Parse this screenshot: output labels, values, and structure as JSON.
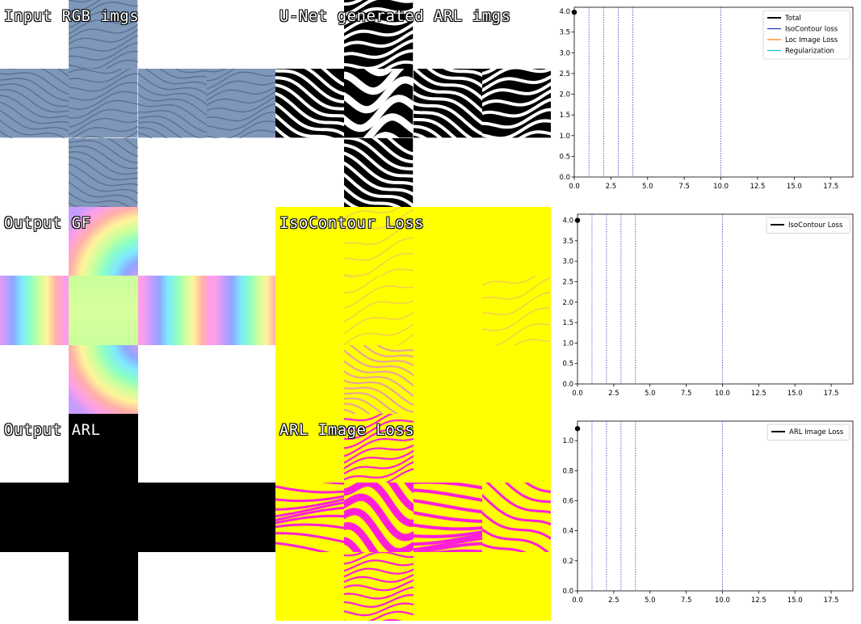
{
  "panels": [
    {
      "key": "input_rgb",
      "label": "Input RGB imgs",
      "row": 0,
      "col": 0,
      "style": "rgb"
    },
    {
      "key": "unet_arl",
      "label": "U-Net generated ARL imgs",
      "row": 0,
      "col": 1,
      "style": "bw"
    },
    {
      "key": "output_gf",
      "label": "Output GF",
      "row": 1,
      "col": 0,
      "style": "rainbow"
    },
    {
      "key": "isocontour_loss",
      "label": "IsoContour Loss",
      "row": 1,
      "col": 1,
      "style": "yellow_sparse"
    },
    {
      "key": "output_arl",
      "label": "Output ARL",
      "row": 2,
      "col": 0,
      "style": "black"
    },
    {
      "key": "arl_image_loss",
      "label": "ARL Image Loss",
      "row": 2,
      "col": 1,
      "style": "yellow_magenta"
    }
  ],
  "colors": {
    "rgb_base": "#7f97b8",
    "rgb_stripe": "#3e5472",
    "bw_base": "#000000",
    "bw_stripe": "#ffffff",
    "yellow": "#ffff00",
    "magenta": "#ff1fd6",
    "pink_sparse": "#e89aa8",
    "black": "#000000",
    "total": "#000000",
    "isocontour": "#1f3fbf",
    "loc_image": "#ff7f0e",
    "regularization": "#17becf",
    "vline": "#3b3bc8"
  },
  "chart_data": [
    {
      "type": "line",
      "xlim": [
        0,
        19
      ],
      "ylim": [
        0,
        4.1
      ],
      "xticks": [
        "0.0",
        "2.5",
        "5.0",
        "7.5",
        "10.0",
        "12.5",
        "15.0",
        "17.5"
      ],
      "yticks": [
        "0.0",
        "0.5",
        "1.0",
        "1.5",
        "2.0",
        "2.5",
        "3.0",
        "3.5",
        "4.0"
      ],
      "x_ticks_values": [
        0,
        2.5,
        5,
        7.5,
        10,
        12.5,
        15,
        17.5
      ],
      "y_ticks_values": [
        0,
        0.5,
        1,
        1.5,
        2,
        2.5,
        3,
        3.5,
        4
      ],
      "vlines": [
        1,
        2,
        3,
        4,
        10
      ],
      "legend_position": "top-right",
      "series": [
        {
          "name": "Total",
          "x": [
            0
          ],
          "y": [
            3.98
          ],
          "color": "#000000"
        },
        {
          "name": "IsoContour loss",
          "x": [],
          "y": [],
          "color": "#1f3fbf"
        },
        {
          "name": "Loc Image Loss",
          "x": [],
          "y": [],
          "color": "#ff7f0e"
        },
        {
          "name": "Regularization",
          "x": [],
          "y": [],
          "color": "#17becf"
        }
      ]
    },
    {
      "type": "line",
      "xlim": [
        0,
        19
      ],
      "ylim": [
        0,
        4.15
      ],
      "xticks": [
        "0.0",
        "2.5",
        "5.0",
        "7.5",
        "10.0",
        "12.5",
        "15.0",
        "17.5"
      ],
      "yticks": [
        "0.0",
        "0.5",
        "1.0",
        "1.5",
        "2.0",
        "2.5",
        "3.0",
        "3.5",
        "4.0"
      ],
      "x_ticks_values": [
        0,
        2.5,
        5,
        7.5,
        10,
        12.5,
        15,
        17.5
      ],
      "y_ticks_values": [
        0,
        0.5,
        1,
        1.5,
        2,
        2.5,
        3,
        3.5,
        4
      ],
      "vlines": [
        1,
        2,
        3,
        4,
        10
      ],
      "legend_position": "top-right",
      "series": [
        {
          "name": "IsoContour Loss",
          "x": [
            0
          ],
          "y": [
            4.0
          ],
          "color": "#000000"
        }
      ]
    },
    {
      "type": "line",
      "xlim": [
        0,
        19
      ],
      "ylim": [
        0,
        1.13
      ],
      "xticks": [
        "0.0",
        "2.5",
        "5.0",
        "7.5",
        "10.0",
        "12.5",
        "15.0",
        "17.5"
      ],
      "yticks": [
        "0.0",
        "0.2",
        "0.4",
        "0.6",
        "0.8",
        "1.0"
      ],
      "x_ticks_values": [
        0,
        2.5,
        5,
        7.5,
        10,
        12.5,
        15,
        17.5
      ],
      "y_ticks_values": [
        0,
        0.2,
        0.4,
        0.6,
        0.8,
        1.0
      ],
      "vlines": [
        1,
        2,
        3,
        4,
        10
      ],
      "legend_position": "top-right",
      "series": [
        {
          "name": "ARL Image Loss",
          "x": [
            0
          ],
          "y": [
            1.08
          ],
          "color": "#000000"
        }
      ]
    }
  ]
}
